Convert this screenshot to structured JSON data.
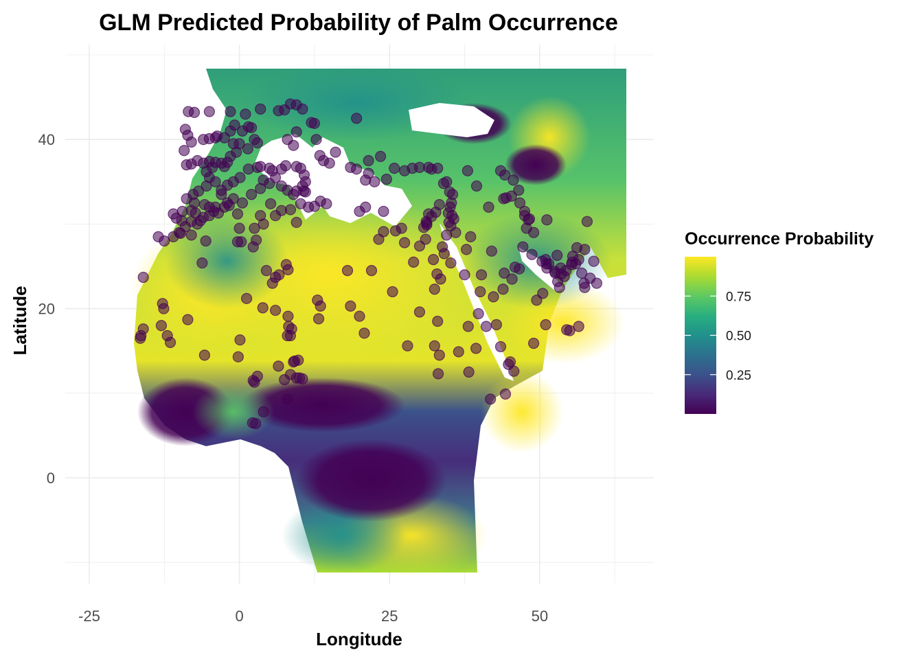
{
  "chart_data": {
    "type": "map",
    "title": "GLM Predicted Probability of Palm Occurrence",
    "xlabel": "Longitude",
    "ylabel": "Latitude",
    "xlim": [
      -29,
      69
    ],
    "ylim": [
      -12.5,
      50
    ],
    "x_ticks": [
      {
        "value": -25,
        "label": "-25"
      },
      {
        "value": 0,
        "label": "0"
      },
      {
        "value": 25,
        "label": "25"
      },
      {
        "value": 50,
        "label": "50"
      }
    ],
    "y_ticks": [
      {
        "value": 0,
        "label": "0"
      },
      {
        "value": 20,
        "label": "20"
      },
      {
        "value": 40,
        "label": "40"
      }
    ],
    "grid": true,
    "legend": {
      "title": "Occurrence Probability",
      "position": "right",
      "colormap": "viridis",
      "range": [
        0.0,
        1.0
      ],
      "ticks": [
        {
          "value": 0.25,
          "label": "0.25"
        },
        {
          "value": 0.5,
          "label": "0.50"
        },
        {
          "value": 0.75,
          "label": "0.75"
        }
      ],
      "colors": [
        "#440154",
        "#3b528b",
        "#21918c",
        "#5ec962",
        "#fde725"
      ]
    },
    "point_color": "#440154",
    "points": [
      [
        -8.5,
        43.3
      ],
      [
        -7.5,
        43.2
      ],
      [
        -5,
        43.3
      ],
      [
        -1.5,
        43.3
      ],
      [
        1,
        43
      ],
      [
        3.5,
        43.6
      ],
      [
        6.5,
        43.4
      ],
      [
        7.5,
        43.5
      ],
      [
        8.5,
        44.2
      ],
      [
        9.5,
        44.1
      ],
      [
        10.5,
        43.6
      ],
      [
        12,
        42
      ],
      [
        12.5,
        41.9
      ],
      [
        19.5,
        42.5
      ],
      [
        -9,
        41.2
      ],
      [
        -8.6,
        40.5
      ],
      [
        -8,
        39.7
      ],
      [
        -6,
        40
      ],
      [
        -5,
        40.1
      ],
      [
        -4,
        40.2
      ],
      [
        -3.7,
        40.4
      ],
      [
        -2.5,
        40.2
      ],
      [
        -1,
        39.5
      ],
      [
        0,
        39.5
      ],
      [
        -0.5,
        38.5
      ],
      [
        -1.5,
        38
      ],
      [
        -2,
        37.3
      ],
      [
        -3,
        37.2
      ],
      [
        -4,
        37.3
      ],
      [
        -5,
        37.4
      ],
      [
        -6,
        37.2
      ],
      [
        -7,
        37.5
      ],
      [
        -8,
        37.1
      ],
      [
        -8.8,
        37
      ],
      [
        -9.2,
        38.7
      ],
      [
        -4.5,
        36.7
      ],
      [
        -5.5,
        36.2
      ],
      [
        -2.5,
        36.8
      ],
      [
        -1.5,
        41
      ],
      [
        -0.8,
        41.7
      ],
      [
        0.5,
        41
      ],
      [
        1.5,
        41.5
      ],
      [
        2,
        41.4
      ],
      [
        3,
        39.6
      ],
      [
        1.4,
        38.9
      ],
      [
        2.5,
        40
      ],
      [
        8,
        40
      ],
      [
        9,
        39.3
      ],
      [
        9.5,
        40.9
      ],
      [
        14,
        37.5
      ],
      [
        15,
        37.2
      ],
      [
        13.4,
        38.1
      ],
      [
        16,
        38.5
      ],
      [
        12.8,
        40
      ],
      [
        -9.6,
        30.4
      ],
      [
        -9.5,
        31.5
      ],
      [
        -8,
        31.6
      ],
      [
        -7.5,
        32.5
      ],
      [
        -6.8,
        33.9
      ],
      [
        -5.5,
        34.5
      ],
      [
        -5,
        35.5
      ],
      [
        -4,
        35
      ],
      [
        -3,
        34
      ],
      [
        -2,
        34.6
      ],
      [
        -1,
        35
      ],
      [
        0.1,
        35.5
      ],
      [
        1.5,
        36.5
      ],
      [
        3,
        36.7
      ],
      [
        3.5,
        36.8
      ],
      [
        5,
        36.6
      ],
      [
        5.5,
        36.3
      ],
      [
        7,
        36.5
      ],
      [
        7.7,
        36.9
      ],
      [
        9.5,
        36.8
      ],
      [
        10.2,
        36.6
      ],
      [
        10.8,
        35.8
      ],
      [
        11,
        35
      ],
      [
        10.5,
        34.5
      ],
      [
        9.5,
        33.9
      ],
      [
        9,
        33.5
      ],
      [
        8,
        34
      ],
      [
        7,
        34.5
      ],
      [
        6,
        35.5
      ],
      [
        5,
        34.8
      ],
      [
        4,
        35.2
      ],
      [
        3.5,
        34.2
      ],
      [
        2,
        33.5
      ],
      [
        0.5,
        32.5
      ],
      [
        -1,
        33
      ],
      [
        -2,
        32.5
      ],
      [
        -3,
        33.5
      ],
      [
        -4,
        32
      ],
      [
        -5,
        31
      ],
      [
        -6,
        30.8
      ],
      [
        -7,
        30
      ],
      [
        -8,
        30.3
      ],
      [
        -9,
        29.7
      ],
      [
        -10,
        29
      ],
      [
        -11,
        28.5
      ],
      [
        -12.5,
        28
      ],
      [
        -13.5,
        28.5
      ],
      [
        -8,
        28.7
      ],
      [
        -9.8,
        28.9
      ],
      [
        -10.5,
        30.7
      ],
      [
        -11,
        31.2
      ],
      [
        -7.7,
        33.5
      ],
      [
        -5.8,
        32.3
      ],
      [
        -5,
        32
      ],
      [
        -4.3,
        31.5
      ],
      [
        -3.5,
        31.3
      ],
      [
        -2.5,
        32
      ],
      [
        -1.7,
        32.2
      ],
      [
        -0.3,
        31.2
      ],
      [
        -8.8,
        33
      ],
      [
        -7.3,
        31.3
      ],
      [
        -6.5,
        30.4
      ],
      [
        11.5,
        32
      ],
      [
        12.5,
        32.1
      ],
      [
        13.5,
        32.7
      ],
      [
        14.5,
        32.4
      ],
      [
        11,
        33.8
      ],
      [
        10.7,
        33.9
      ],
      [
        8.5,
        31.7
      ],
      [
        7,
        31.6
      ],
      [
        5.2,
        32.4
      ],
      [
        6,
        31
      ],
      [
        3.5,
        31
      ],
      [
        4,
        30
      ],
      [
        2.5,
        29.5
      ],
      [
        0,
        29.5
      ],
      [
        -0.3,
        27.9
      ],
      [
        0.3,
        27.9
      ],
      [
        2.3,
        27.3
      ],
      [
        2.8,
        28.1
      ],
      [
        -5.6,
        28
      ],
      [
        -6.2,
        25.4
      ],
      [
        9.5,
        30.2
      ],
      [
        10.2,
        32.4
      ],
      [
        18.5,
        36.7
      ],
      [
        19.5,
        36.5
      ],
      [
        21,
        35.2
      ],
      [
        22.5,
        35
      ],
      [
        24.5,
        35.3
      ],
      [
        25.8,
        36.6
      ],
      [
        27.5,
        36.3
      ],
      [
        28.8,
        36.6
      ],
      [
        30,
        36.7
      ],
      [
        31.5,
        36.7
      ],
      [
        32,
        36.5
      ],
      [
        33,
        36.6
      ],
      [
        34,
        34.8
      ],
      [
        34.5,
        35
      ],
      [
        35,
        33.8
      ],
      [
        35.5,
        33.5
      ],
      [
        35.3,
        32.5
      ],
      [
        35.1,
        32
      ],
      [
        34.8,
        31.3
      ],
      [
        35.4,
        31
      ],
      [
        34.9,
        30.2
      ],
      [
        35.2,
        29.8
      ],
      [
        35.7,
        30.6
      ],
      [
        36,
        29
      ],
      [
        34.5,
        28.7
      ],
      [
        33.8,
        27.3
      ],
      [
        34.1,
        26.5
      ],
      [
        35.2,
        25.4
      ],
      [
        32.3,
        25.8
      ],
      [
        32.9,
        24.1
      ],
      [
        31,
        28.2
      ],
      [
        30,
        27.4
      ],
      [
        30.7,
        29.6
      ],
      [
        31.2,
        30.1
      ],
      [
        31.5,
        31.2
      ],
      [
        31.1,
        30.3
      ],
      [
        27,
        29.5
      ],
      [
        26,
        29.2
      ],
      [
        24,
        29.1
      ],
      [
        23.2,
        28.2
      ],
      [
        24,
        31.5
      ],
      [
        21,
        32
      ],
      [
        20,
        31.5
      ],
      [
        22,
        24.5
      ],
      [
        18,
        24.5
      ],
      [
        25.5,
        22
      ],
      [
        33.5,
        23.5
      ],
      [
        32.5,
        22.3
      ],
      [
        33,
        18.5
      ],
      [
        30,
        19.6
      ],
      [
        27.5,
        27.8
      ],
      [
        29,
        25.5
      ],
      [
        21.5,
        36
      ],
      [
        23.5,
        38
      ],
      [
        21.5,
        37.5
      ],
      [
        31.2,
        29.9
      ],
      [
        32,
        30.9
      ],
      [
        33.3,
        32.3
      ],
      [
        32.7,
        31.4
      ],
      [
        39.5,
        34.5
      ],
      [
        38,
        36.3
      ],
      [
        38.5,
        28.5
      ],
      [
        37.8,
        27
      ],
      [
        37.5,
        24
      ],
      [
        42,
        26.8
      ],
      [
        41.5,
        32
      ],
      [
        43.5,
        36.3
      ],
      [
        44.2,
        35.8
      ],
      [
        45.6,
        35.2
      ],
      [
        46.5,
        34
      ],
      [
        45.3,
        33.3
      ],
      [
        44.4,
        33.1
      ],
      [
        44,
        33
      ],
      [
        46.7,
        32.5
      ],
      [
        47.5,
        31.5
      ],
      [
        48.1,
        30.5
      ],
      [
        47.8,
        29.5
      ],
      [
        47.5,
        31
      ],
      [
        51.2,
        30.5
      ],
      [
        49,
        29
      ],
      [
        50.4,
        25.6
      ],
      [
        51,
        25.8
      ],
      [
        51.5,
        25.3
      ],
      [
        51.2,
        24.8
      ],
      [
        52.5,
        24.4
      ],
      [
        53.5,
        24.8
      ],
      [
        54.4,
        24.5
      ],
      [
        55.3,
        25.2
      ],
      [
        55.4,
        25.5
      ],
      [
        56,
        25.3
      ],
      [
        56.5,
        25.8
      ],
      [
        57,
        24.2
      ],
      [
        57.4,
        23
      ],
      [
        57.5,
        22.5
      ],
      [
        58.4,
        23.6
      ],
      [
        59.5,
        23
      ],
      [
        59,
        25.6
      ],
      [
        57.5,
        27
      ],
      [
        56.2,
        27.2
      ],
      [
        55.5,
        26.2
      ],
      [
        54.1,
        23.8
      ],
      [
        53,
        23.2
      ],
      [
        52.6,
        24.2
      ],
      [
        53.3,
        22.5
      ],
      [
        53.6,
        24.1
      ],
      [
        50.5,
        21.8
      ],
      [
        49.5,
        21
      ],
      [
        44.1,
        24.2
      ],
      [
        45.9,
        24.9
      ],
      [
        46.6,
        24.7
      ],
      [
        45.4,
        23.5
      ],
      [
        48.7,
        26.4
      ],
      [
        47.2,
        27.3
      ],
      [
        48.3,
        30.6
      ],
      [
        51.1,
        25.3
      ],
      [
        52.9,
        26.3
      ],
      [
        54.5,
        17.5
      ],
      [
        55,
        17.4
      ],
      [
        56.5,
        17.9
      ],
      [
        51,
        18.1
      ],
      [
        49,
        15.9
      ],
      [
        45.1,
        13.7
      ],
      [
        44.8,
        13.4
      ],
      [
        45.7,
        12.6
      ],
      [
        43.5,
        15.5
      ],
      [
        42.8,
        18.1
      ],
      [
        41.1,
        17.9
      ],
      [
        39.8,
        19.4
      ],
      [
        41.8,
        9.3
      ],
      [
        44.3,
        9.9
      ],
      [
        39.4,
        15.3
      ],
      [
        40.3,
        24
      ],
      [
        40.1,
        22
      ],
      [
        42.3,
        21.4
      ],
      [
        43.9,
        22.3
      ],
      [
        38.1,
        17.9
      ],
      [
        57.9,
        30.3
      ],
      [
        -16.5,
        16.5
      ],
      [
        -16,
        17.6
      ],
      [
        -16,
        23.7
      ],
      [
        -16.4,
        16.8
      ],
      [
        -13,
        18
      ],
      [
        -12.8,
        20.6
      ],
      [
        -12.6,
        20
      ],
      [
        -12,
        16.8
      ],
      [
        -11.5,
        16
      ],
      [
        -8.6,
        18.7
      ],
      [
        -5.8,
        14.5
      ],
      [
        0.1,
        16.3
      ],
      [
        -0.2,
        14.3
      ],
      [
        3,
        12
      ],
      [
        2.5,
        11.3
      ],
      [
        2.2,
        6.5
      ],
      [
        2.7,
        6.4
      ],
      [
        4,
        7.8
      ],
      [
        6.5,
        13.2
      ],
      [
        7.5,
        11.6
      ],
      [
        8,
        9.3
      ],
      [
        8.5,
        12.2
      ],
      [
        9.5,
        11.8
      ],
      [
        9,
        13.7
      ],
      [
        9.2,
        13.8
      ],
      [
        8.5,
        16.8
      ],
      [
        8.7,
        17.6
      ],
      [
        8.1,
        19.1
      ],
      [
        8.2,
        17.9
      ],
      [
        6,
        19.8
      ],
      [
        3.9,
        20.1
      ],
      [
        2.3,
        11.5
      ],
      [
        10,
        11.8
      ],
      [
        8,
        16.8
      ],
      [
        9.8,
        13.9
      ],
      [
        10.5,
        11.7
      ],
      [
        1.2,
        21.2
      ],
      [
        4.5,
        24.5
      ],
      [
        5.5,
        23
      ],
      [
        6.6,
        24
      ],
      [
        6,
        23.7
      ],
      [
        7.8,
        25.2
      ],
      [
        8.1,
        24.6
      ],
      [
        13,
        21
      ],
      [
        13.5,
        20.3
      ],
      [
        13.2,
        18.8
      ],
      [
        18.5,
        20.3
      ],
      [
        20,
        19.1
      ],
      [
        20.8,
        17.1
      ],
      [
        28,
        15.6
      ],
      [
        33.3,
        14.5
      ],
      [
        36.5,
        14.9
      ],
      [
        38.2,
        12.5
      ],
      [
        33.1,
        12.3
      ],
      [
        32.5,
        15.6
      ]
    ]
  }
}
